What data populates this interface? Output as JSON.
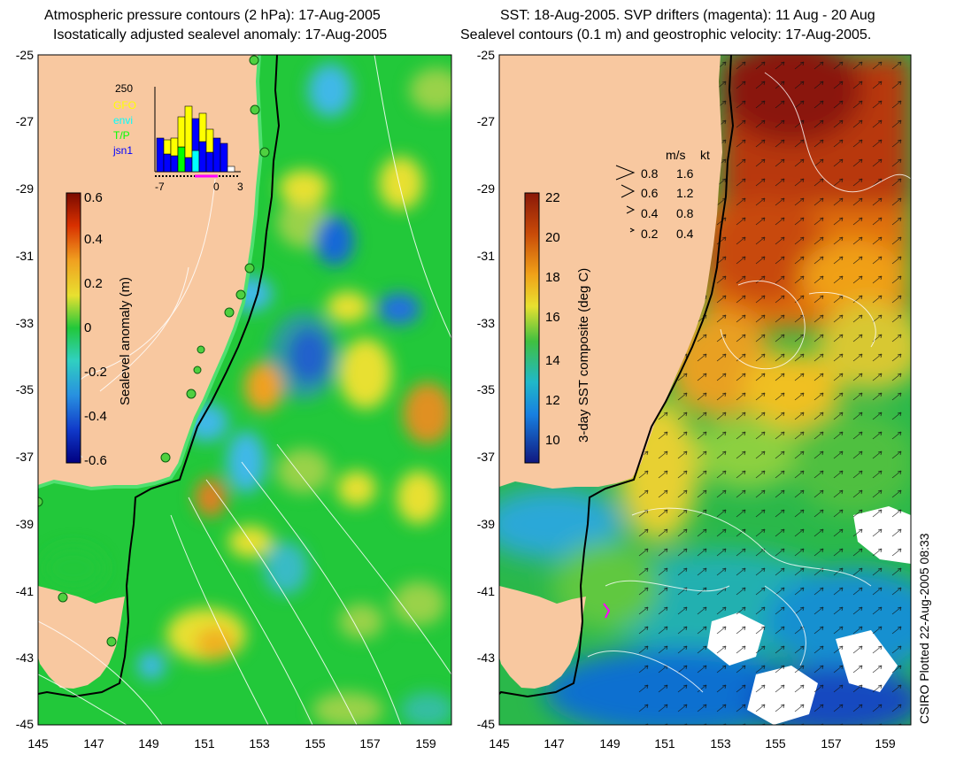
{
  "left_panel": {
    "title_line1": "Atmospheric pressure contours (2 hPa): 17-Aug-2005",
    "title_line2": "Isostatically adjusted sealevel anomaly: 17-Aug-2005",
    "colorbar_label": "Sealevel anomaly (m)",
    "colorbar_ticks": [
      "0.6",
      "0.4",
      "0.2",
      "0",
      "-0.2",
      "-0.4",
      "-0.6"
    ],
    "inset": {
      "y_max_label": "250",
      "x_ticks": [
        "-7",
        "0",
        "3"
      ],
      "legend": [
        {
          "label": "GFO",
          "color": "#ffff00"
        },
        {
          "label": "envi",
          "color": "#00ffff"
        },
        {
          "label": "T/P",
          "color": "#00ff00"
        },
        {
          "label": "jsn1",
          "color": "#0000ff"
        }
      ]
    }
  },
  "right_panel": {
    "title_line1": "SST: 18-Aug-2005. SVP drifters (magenta): 11 Aug - 20 Aug",
    "title_line2": "Sealevel contours (0.1 m) and geostrophic velocity: 17-Aug-2005.",
    "colorbar_label": "3-day SST composite (deg C)",
    "colorbar_ticks": [
      "22",
      "20",
      "18",
      "16",
      "14",
      "12",
      "10"
    ],
    "velocity_legend": {
      "header_ms": "m/s",
      "header_kt": "kt",
      "rows": [
        {
          "ms": "0.8",
          "kt": "1.6"
        },
        {
          "ms": "0.6",
          "kt": "1.2"
        },
        {
          "ms": "0.4",
          "kt": "0.8"
        },
        {
          "ms": "0.2",
          "kt": "0.4"
        }
      ]
    }
  },
  "axes": {
    "y_ticks": [
      "-25",
      "-27",
      "-29",
      "-31",
      "-33",
      "-35",
      "-37",
      "-39",
      "-41",
      "-43",
      "-45"
    ],
    "x_ticks": [
      "145",
      "147",
      "149",
      "151",
      "153",
      "155",
      "157",
      "159"
    ]
  },
  "credit": "CSIRO Plotted 22-Aug-2005 08:33",
  "colors": {
    "land": "#f8c8a0",
    "ocean_green": "#22c83a",
    "coast_line": "#000000",
    "contour_white": "#ffffff"
  }
}
